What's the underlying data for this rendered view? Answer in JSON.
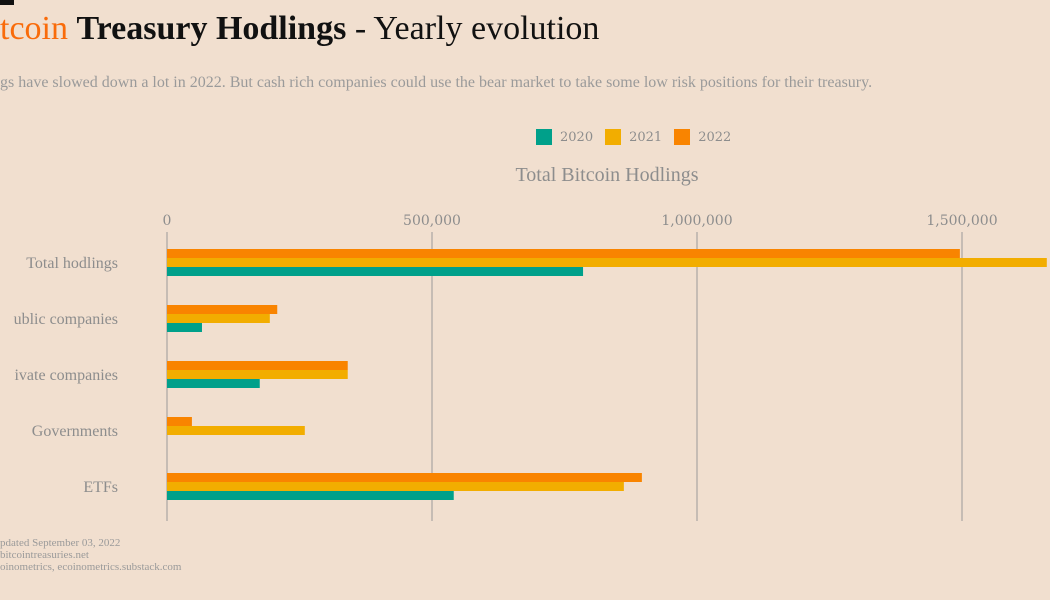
{
  "title": {
    "part1": "tcoin",
    "part2": "Treasury Hodlings",
    "part3": " - Yearly evolution"
  },
  "subtitle": "gs have slowed down a lot in 2022. But cash rich companies could use the bear market to take some low risk positions for their treasury.",
  "footer": [
    "pdated September 03, 2022",
    "bitcointreasuries.net",
    "oinometrics, ecoinometrics.substack.com"
  ],
  "chart_data": {
    "type": "bar",
    "orientation": "horizontal",
    "title": "Total Bitcoin Hodlings",
    "categories": [
      "Total hodlings",
      "ublic companies",
      "ivate companies",
      "Governments",
      "ETFs"
    ],
    "series": [
      {
        "name": "2022",
        "color": "#f98400",
        "values": [
          1496000,
          208000,
          341000,
          47000,
          896000
        ]
      },
      {
        "name": "2021",
        "color": "#f2ad00",
        "values": [
          1660000,
          194000,
          341000,
          260000,
          862000
        ]
      },
      {
        "name": "2020",
        "color": "#00a08a",
        "values": [
          785000,
          66000,
          175000,
          0,
          541000
        ]
      }
    ],
    "legend_order": [
      "2020",
      "2021",
      "2022"
    ],
    "xticks": [
      {
        "v": 0,
        "label": "0"
      },
      {
        "v": 500000,
        "label": "500,000"
      },
      {
        "v": 1000000,
        "label": "1,000,000"
      },
      {
        "v": 1500000,
        "label": "1,500,000"
      }
    ],
    "xlim": [
      0,
      1660000
    ],
    "grid": true,
    "legend_position": "top"
  }
}
